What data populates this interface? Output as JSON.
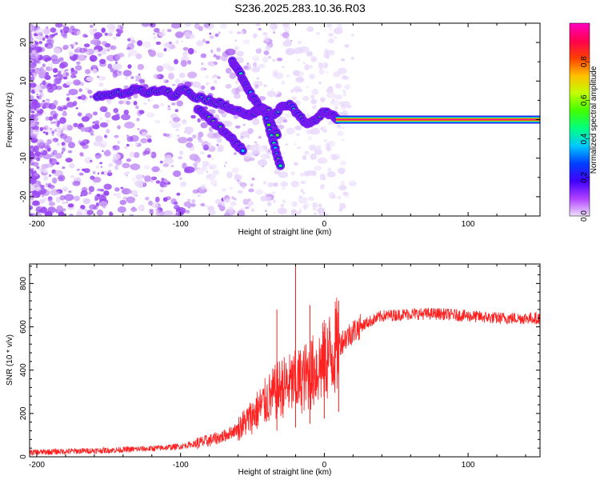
{
  "title": "S236.2025.283.10.36.R03",
  "chart_data": [
    {
      "type": "heatmap",
      "name": "spectrogram",
      "xlabel": "Height of straight line (km)",
      "ylabel": "Frequency (Hz)",
      "xlim": [
        -205,
        150
      ],
      "ylim": [
        -25,
        25
      ],
      "xticks": [
        -200,
        -100,
        0,
        100
      ],
      "yticks": [
        -20,
        -10,
        0,
        10,
        20
      ],
      "colorbar": {
        "label": "Normalized spectral amplitude",
        "range": [
          0.0,
          1.0
        ],
        "ticks": [
          0.0,
          0.2,
          0.4,
          0.6,
          0.8
        ],
        "colors": [
          "#f0e0ff",
          "#b040ff",
          "#4000ff",
          "#0040ff",
          "#00c8ff",
          "#00ff80",
          "#40ff00",
          "#c0ff00",
          "#ffc000",
          "#ff4000",
          "#ff0050",
          "#ff00c0"
        ]
      },
      "main_tone": {
        "x_start": 8,
        "x_end": 150,
        "frequency": 0,
        "amplitude": 1.0
      },
      "ridges": [
        {
          "x": [
            -158,
            -148,
            -138,
            -130,
            -122,
            -112,
            -105,
            -98,
            -90,
            -80,
            -72,
            -65,
            -58,
            -52,
            -48,
            -42,
            -36,
            -30,
            -24,
            -18,
            -12,
            -6,
            0,
            6,
            10
          ],
          "y": [
            6,
            6.5,
            7,
            8,
            7,
            8,
            6,
            8,
            6,
            5,
            4,
            3,
            2,
            1,
            2,
            3,
            1,
            3,
            4,
            1,
            -1,
            0,
            2,
            1,
            0
          ]
        },
        {
          "x": [
            -64,
            -60,
            -56,
            -52,
            -48,
            -44,
            -40,
            -36,
            -32
          ],
          "y": [
            15,
            13,
            10,
            7,
            5,
            3,
            1,
            -2,
            -4
          ]
        },
        {
          "x": [
            -88,
            -82,
            -76,
            -70,
            -64,
            -60,
            -56
          ],
          "y": [
            3,
            1,
            -1,
            -3,
            -5,
            -7,
            -8
          ]
        },
        {
          "x": [
            -40,
            -36,
            -33,
            -30
          ],
          "y": [
            0,
            -5,
            -9,
            -13
          ]
        }
      ]
    },
    {
      "type": "line",
      "name": "snr",
      "xlabel": "Height of straight line (km)",
      "ylabel": "SNR (10 * v/v)",
      "xlim": [
        -205,
        150
      ],
      "ylim": [
        0,
        890
      ],
      "xticks": [
        -200,
        -100,
        0,
        100
      ],
      "yticks": [
        0,
        200,
        400,
        600,
        800
      ],
      "color": "#ff2020",
      "trend": {
        "x": [
          -205,
          -180,
          -150,
          -120,
          -100,
          -90,
          -80,
          -70,
          -60,
          -50,
          -40,
          -30,
          -20,
          -10,
          0,
          10,
          20,
          30,
          40,
          60,
          80,
          100,
          120,
          150
        ],
        "y": [
          20,
          25,
          30,
          38,
          48,
          60,
          75,
          95,
          130,
          190,
          260,
          320,
          340,
          380,
          440,
          520,
          580,
          620,
          650,
          660,
          660,
          650,
          640,
          640
        ]
      },
      "spikes": [
        {
          "x": -20,
          "y": 890
        },
        {
          "x": -33,
          "y": 680
        },
        {
          "x": -10,
          "y": 700
        },
        {
          "x": 10,
          "y": 720
        },
        {
          "x": 0,
          "y": 600
        }
      ]
    }
  ]
}
